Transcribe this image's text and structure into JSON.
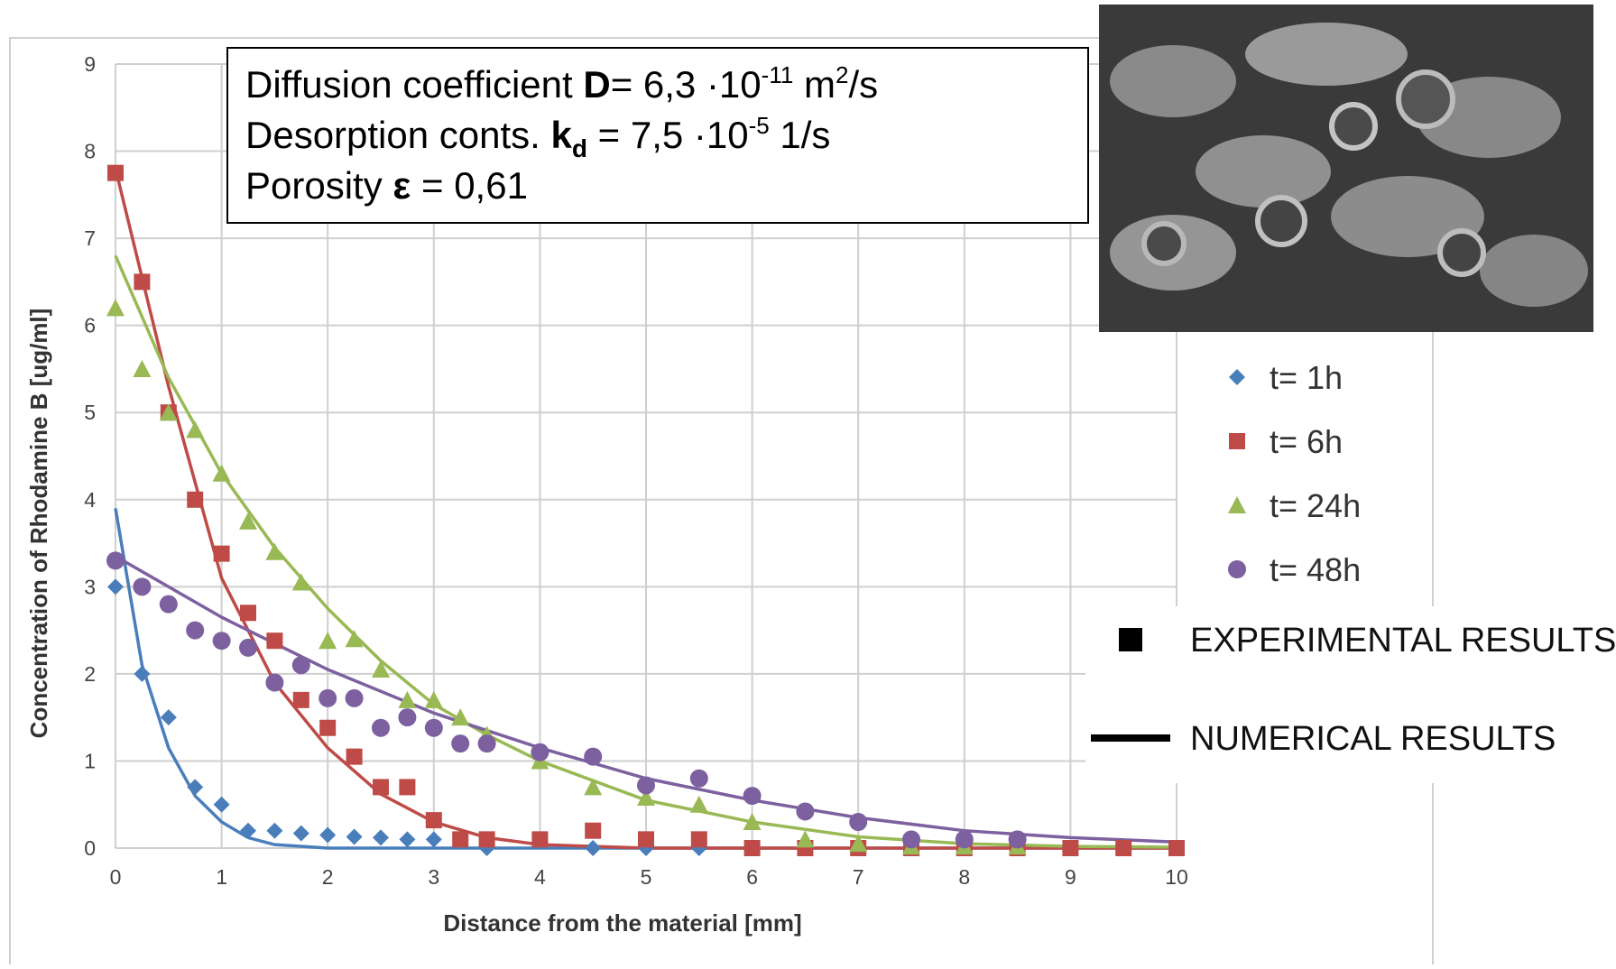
{
  "chart_data": {
    "type": "scatter",
    "x_label": "Distance from the material [mm]",
    "y_label": "Concentration of Rhodamine B [ug/ml]",
    "xlim": [
      0,
      10
    ],
    "xticks": [
      0,
      1,
      2,
      3,
      4,
      5,
      6,
      7,
      8,
      9,
      10
    ],
    "ylim": [
      0,
      9
    ],
    "yticks": [
      0,
      1,
      2,
      3,
      4,
      5,
      6,
      7,
      8,
      9
    ],
    "grid": true,
    "annotation": [
      [
        "Diffusion coefficient ",
        "D",
        "= 6,3 ·10",
        "-11",
        " m",
        "2",
        "/s"
      ],
      [
        "Desorption conts. ",
        "k",
        "d",
        " = 7,5 ·10",
        "-5",
        " 1/s"
      ],
      [
        "Porosity ",
        "ε",
        " = 0,61"
      ]
    ],
    "legend_notes": [
      "EXPERIMENTAL RESULTS",
      "NUMERICAL RESULTS"
    ],
    "series": [
      {
        "name": "t= 1h",
        "color": "#4a7ebb",
        "marker": "diamond",
        "x": [
          0,
          0.25,
          0.5,
          0.75,
          1,
          1.25,
          1.5,
          1.75,
          2,
          2.25,
          2.5,
          2.75,
          3,
          3.5,
          4.5,
          5,
          5.5
        ],
        "values": [
          3.0,
          2.0,
          1.5,
          0.7,
          0.5,
          0.2,
          0.2,
          0.17,
          0.15,
          0.13,
          0.12,
          0.1,
          0.1,
          0,
          0,
          0,
          0
        ],
        "fit_x": [
          0,
          0.25,
          0.5,
          0.75,
          1,
          1.25,
          1.5,
          2,
          3,
          4,
          5,
          6,
          7,
          8,
          9,
          10
        ],
        "fit_values": [
          3.9,
          2.1,
          1.15,
          0.6,
          0.3,
          0.12,
          0.04,
          0,
          0,
          0,
          0,
          0,
          0,
          0,
          0,
          0
        ]
      },
      {
        "name": "t= 6h",
        "color": "#be4b48",
        "marker": "square",
        "x": [
          0,
          0.25,
          0.5,
          0.75,
          1,
          1.25,
          1.5,
          1.75,
          2,
          2.25,
          2.5,
          2.75,
          3,
          3.25,
          3.5,
          4,
          4.5,
          5,
          5.5,
          6,
          6.5,
          7,
          7.5,
          8,
          8.5,
          9,
          9.5,
          10
        ],
        "values": [
          7.75,
          6.5,
          5.0,
          4.0,
          3.38,
          2.7,
          2.38,
          1.7,
          1.38,
          1.05,
          0.7,
          0.7,
          0.32,
          0.1,
          0.1,
          0.1,
          0.2,
          0.1,
          0.1,
          0,
          0,
          0,
          0,
          0,
          0,
          0,
          0,
          0
        ],
        "fit_x": [
          0,
          0.5,
          1,
          1.5,
          2,
          2.5,
          3,
          3.5,
          4,
          5,
          6,
          10
        ],
        "fit_values": [
          7.8,
          5.3,
          3.1,
          1.9,
          1.15,
          0.62,
          0.3,
          0.12,
          0.04,
          0,
          0,
          0
        ]
      },
      {
        "name": "t= 24h",
        "color": "#98b954",
        "marker": "triangle",
        "x": [
          0,
          0.25,
          0.5,
          0.75,
          1,
          1.25,
          1.5,
          1.75,
          2,
          2.25,
          2.5,
          2.75,
          3,
          3.25,
          3.5,
          4,
          4.5,
          5,
          5.5,
          6,
          6.5,
          7,
          7.5,
          8,
          8.5
        ],
        "values": [
          6.2,
          5.5,
          5.0,
          4.8,
          4.3,
          3.75,
          3.4,
          3.05,
          2.38,
          2.4,
          2.05,
          1.7,
          1.7,
          1.5,
          1.3,
          1.0,
          0.7,
          0.58,
          0.5,
          0.3,
          0.1,
          0.05,
          0.02,
          0.02,
          0.02
        ],
        "fit_x": [
          0,
          0.5,
          1,
          1.5,
          2,
          2.5,
          3,
          3.5,
          4,
          5,
          6,
          7,
          8,
          9,
          10
        ],
        "fit_values": [
          6.8,
          5.4,
          4.3,
          3.45,
          2.75,
          2.15,
          1.65,
          1.3,
          1.0,
          0.55,
          0.3,
          0.13,
          0.05,
          0.02,
          0.01
        ]
      },
      {
        "name": "t= 48h",
        "color": "#7d60a0",
        "marker": "circle",
        "x": [
          0,
          0.25,
          0.5,
          0.75,
          1,
          1.25,
          1.5,
          1.75,
          2,
          2.25,
          2.5,
          2.75,
          3,
          3.25,
          3.5,
          4,
          4.5,
          5,
          5.5,
          6,
          6.5,
          7,
          7.5,
          8,
          8.5
        ],
        "values": [
          3.3,
          3.0,
          2.8,
          2.5,
          2.38,
          2.3,
          1.9,
          2.1,
          1.72,
          1.72,
          1.38,
          1.5,
          1.38,
          1.2,
          1.2,
          1.1,
          1.05,
          0.72,
          0.8,
          0.6,
          0.42,
          0.3,
          0.1,
          0.1,
          0.1
        ],
        "fit_x": [
          0,
          1,
          2,
          3,
          4,
          5,
          6,
          7,
          8,
          9,
          10
        ],
        "fit_values": [
          3.35,
          2.65,
          2.05,
          1.55,
          1.15,
          0.8,
          0.55,
          0.35,
          0.2,
          0.12,
          0.07
        ]
      }
    ]
  }
}
